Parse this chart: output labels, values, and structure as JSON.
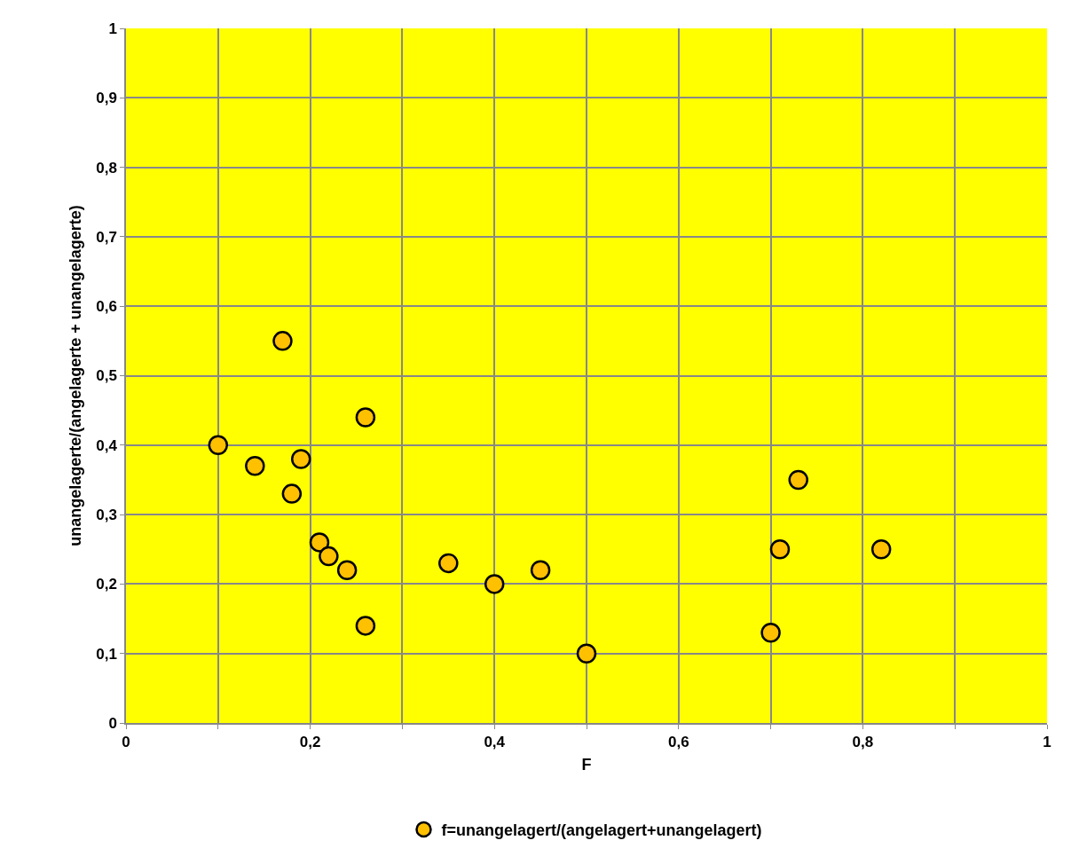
{
  "chart_data": {
    "type": "scatter",
    "xlabel": "F",
    "ylabel": "unangelagerte/(angelagerte + unangelagerte)",
    "series": [
      {
        "name": "f=unangelagert/(angelagert+unangelagert)",
        "color": "#ffc000",
        "x": [
          0.1,
          0.14,
          0.17,
          0.18,
          0.19,
          0.21,
          0.22,
          0.24,
          0.26,
          0.26,
          0.35,
          0.4,
          0.45,
          0.5,
          0.7,
          0.71,
          0.73,
          0.82
        ],
        "values": [
          0.4,
          0.37,
          0.55,
          0.33,
          0.38,
          0.26,
          0.24,
          0.22,
          0.44,
          0.14,
          0.23,
          0.2,
          0.22,
          0.1,
          0.13,
          0.25,
          0.35,
          0.25
        ]
      }
    ],
    "xlim": [
      0,
      1
    ],
    "ylim": [
      0,
      1
    ],
    "xticks": [
      0,
      {
        "value": 0.1,
        "label": null
      },
      {
        "value": 0.2,
        "label": "0,2"
      },
      {
        "value": 0.3,
        "label": null
      },
      {
        "value": 0.4,
        "label": "0,4"
      },
      {
        "value": 0.5,
        "label": null
      },
      {
        "value": 0.6,
        "label": "0,6"
      },
      {
        "value": 0.7,
        "label": null
      },
      {
        "value": 0.8,
        "label": "0,8"
      },
      {
        "value": 0.9,
        "label": null
      },
      1
    ],
    "yticks": [
      0,
      {
        "value": 0.1,
        "label": "0,1"
      },
      {
        "value": 0.2,
        "label": "0,2"
      },
      {
        "value": 0.3,
        "label": "0,3"
      },
      {
        "value": 0.4,
        "label": "0,4"
      },
      {
        "value": 0.5,
        "label": "0,5"
      },
      {
        "value": 0.6,
        "label": "0,6"
      },
      {
        "value": 0.7,
        "label": "0,7"
      },
      {
        "value": 0.8,
        "label": "0,8"
      },
      {
        "value": 0.9,
        "label": "0,9"
      },
      1
    ],
    "grid": true,
    "legend": "bottom",
    "marker": "circle"
  }
}
